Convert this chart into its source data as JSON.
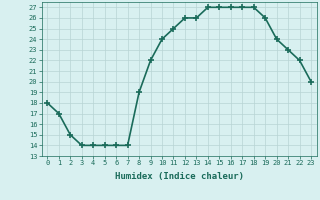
{
  "x": [
    0,
    1,
    2,
    3,
    4,
    5,
    6,
    7,
    8,
    9,
    10,
    11,
    12,
    13,
    14,
    15,
    16,
    17,
    18,
    19,
    20,
    21,
    22,
    23
  ],
  "y": [
    18,
    17,
    15,
    14,
    14,
    14,
    14,
    14,
    19,
    22,
    24,
    25,
    26,
    26,
    27,
    27,
    27,
    27,
    27,
    26,
    24,
    23,
    22,
    20
  ],
  "xlabel": "Humidex (Indice chaleur)",
  "ylabel": "",
  "xlim": [
    -0.5,
    23.5
  ],
  "ylim": [
    13,
    27.5
  ],
  "yticks": [
    13,
    14,
    15,
    16,
    17,
    18,
    19,
    20,
    21,
    22,
    23,
    24,
    25,
    26,
    27
  ],
  "xticks": [
    0,
    1,
    2,
    3,
    4,
    5,
    6,
    7,
    8,
    9,
    10,
    11,
    12,
    13,
    14,
    15,
    16,
    17,
    18,
    19,
    20,
    21,
    22,
    23
  ],
  "xtick_labels": [
    "0",
    "1",
    "2",
    "3",
    "4",
    "5",
    "6",
    "7",
    "8",
    "9",
    "10",
    "11",
    "12",
    "13",
    "14",
    "15",
    "16",
    "17",
    "18",
    "19",
    "20",
    "21",
    "22",
    "23"
  ],
  "line_color": "#1a6b5a",
  "marker": "+",
  "marker_size": 4,
  "marker_lw": 1.2,
  "bg_color": "#d8f0f0",
  "grid_color": "#b8d4d4",
  "line_width": 1.2
}
